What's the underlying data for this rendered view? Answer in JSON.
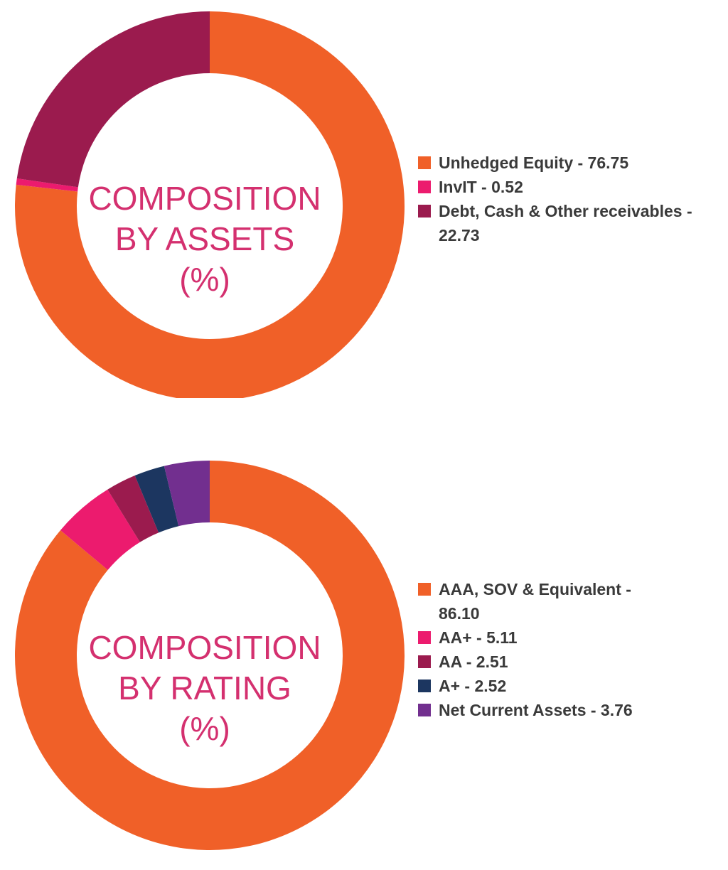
{
  "chart_data": [
    {
      "type": "pie",
      "donut": true,
      "center_title_lines": [
        "COMPOSITION",
        "BY ASSETS",
        "(%)"
      ],
      "legend_position": "right",
      "slices": [
        {
          "label": "Unhedged Equity - 76.75",
          "value": 76.75,
          "color": "#f06028"
        },
        {
          "label": "InvIT - 0.52",
          "value": 0.52,
          "color": "#ec1b6e"
        },
        {
          "label": "Debt, Cash & Other receivables - 22.73",
          "value": 22.73,
          "color": "#9b1b4e"
        }
      ]
    },
    {
      "type": "pie",
      "donut": true,
      "center_title_lines": [
        "COMPOSITION",
        "BY RATING",
        "(%)"
      ],
      "legend_position": "right",
      "slices": [
        {
          "label": "AAA, SOV & Equivalent - 86.10",
          "value": 86.1,
          "color": "#f06028"
        },
        {
          "label": "AA+ - 5.11",
          "value": 5.11,
          "color": "#ec1b6e"
        },
        {
          "label": "AA - 2.51",
          "value": 2.51,
          "color": "#9b1b4e"
        },
        {
          "label": "A+ - 2.52",
          "value": 2.52,
          "color": "#1c3660"
        },
        {
          "label": "Net Current Assets - 3.76",
          "value": 3.76,
          "color": "#722f8f"
        }
      ]
    }
  ]
}
